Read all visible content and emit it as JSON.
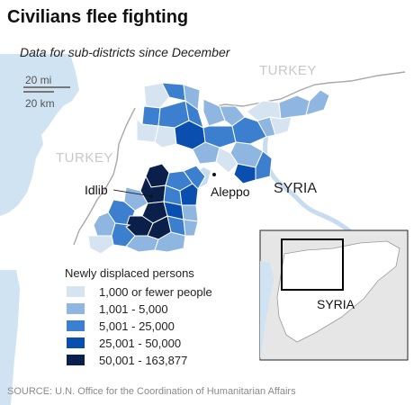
{
  "title": "Civilians flee fighting",
  "subtitle": "Data for sub-districts since December",
  "scale": {
    "miles": "20 mi",
    "km": "20 km"
  },
  "labels": {
    "turkey_top": "TURKEY",
    "turkey_left": "TURKEY",
    "syria_main": "SYRIA",
    "syria_inset": "SYRIA",
    "idlib": "Idlib",
    "aleppo": "Aleppo"
  },
  "legend": {
    "title": "Newly displaced persons",
    "items": [
      {
        "label": "1,000 or fewer people",
        "color": "#d6e4f2"
      },
      {
        "label": "1,001 - 5,000",
        "color": "#8fb6e1"
      },
      {
        "label": "5,001 - 25,000",
        "color": "#3d7fcf"
      },
      {
        "label": "25,001 - 50,000",
        "color": "#0a4fb0"
      },
      {
        "label": "50,001 - 163,877",
        "color": "#0a1f4a"
      }
    ]
  },
  "source": "SOURCE: U.N. Office for the Coordination of Humanitarian Affairs",
  "colors": {
    "water": "#cfe3f2",
    "land": "#ffffff",
    "border": "#b0b0b0",
    "inset_land": "#e8e8e8",
    "inset_syria": "#ffffff"
  }
}
